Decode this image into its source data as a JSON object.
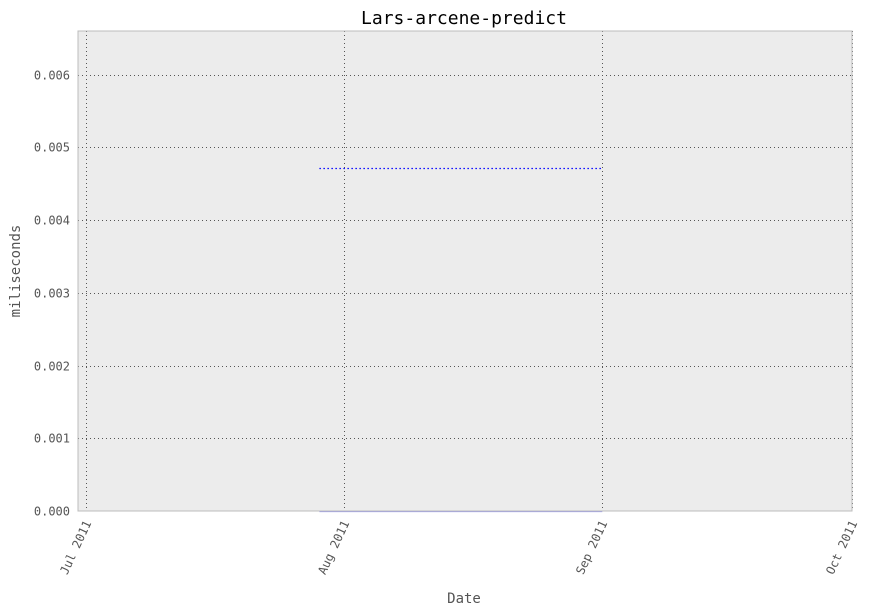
{
  "chart_data": {
    "type": "line",
    "title": "Lars-arcene-predict",
    "xlabel": "Date",
    "ylabel": "miliseconds",
    "x_ticks": [
      "Jul 2011",
      "Aug 2011",
      "Sep 2011",
      "Oct 2011"
    ],
    "x_tick_dates": [
      "2011-07-01",
      "2011-08-01",
      "2011-09-01",
      "2011-10-01"
    ],
    "xlim": [
      "2011-06-30",
      "2011-10-01"
    ],
    "y_ticks": [
      "0.000",
      "0.001",
      "0.002",
      "0.003",
      "0.004",
      "0.005",
      "0.006"
    ],
    "ylim": [
      0,
      0.0066
    ],
    "grid": true,
    "series": [
      {
        "style": "dotted",
        "color": "#0000ff",
        "x": [
          "2011-07-29",
          "2011-09-01"
        ],
        "y": [
          0.00472,
          0.00472
        ]
      },
      {
        "style": "solid",
        "color": "#9999ee",
        "x": [
          "2011-07-29",
          "2011-09-01"
        ],
        "y": [
          0.0,
          0.0
        ]
      }
    ],
    "colors": {
      "plot_background": "#ececec",
      "grid": "#555555",
      "axis_border": "#bcbcbc"
    }
  }
}
